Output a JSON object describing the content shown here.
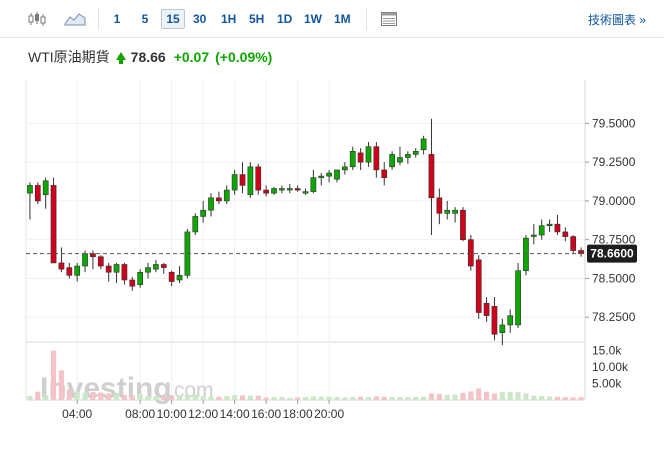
{
  "toolbar": {
    "chart_type_icon": "candlestick-icon",
    "area_icon": "area-chart-icon",
    "timeframes": [
      "1",
      "5",
      "15",
      "30",
      "1H",
      "5H",
      "1D",
      "1W",
      "1M"
    ],
    "active_timeframe": "15",
    "table_icon": "data-table-icon",
    "chart_link": "技術圖表 »"
  },
  "quote": {
    "name": "WTI原油期貨",
    "last": "78.66",
    "change": "+0.07",
    "change_pct": "(+0.09%)"
  },
  "watermark": {
    "brand": "Investing",
    "suffix": ".com"
  },
  "colors": {
    "up": "#0ea600",
    "down": "#d0021b",
    "price_tag": "#1d1d1d",
    "grid": "#f0f0f0"
  },
  "chart_data": {
    "type": "candlestick",
    "price_axis": {
      "ticks": [
        "79.5000",
        "79.2500",
        "79.0000",
        "78.7500",
        "78.5000",
        "78.2500"
      ],
      "ylim": [
        78.09,
        79.78
      ]
    },
    "current_price_label": "78.6600",
    "current_price": 78.66,
    "time_axis": {
      "labels": [
        "04:00",
        "08:00",
        "10:00",
        "12:00",
        "14:00",
        "16:00",
        "18:00",
        "20:00"
      ],
      "label_positions": [
        6,
        14,
        18,
        22,
        26,
        30,
        34,
        38
      ]
    },
    "volume_axis": {
      "ticks": [
        "15.0k",
        "10.00k",
        "5.00k"
      ],
      "max": 17000
    },
    "candles": [
      [
        79.05,
        79.12,
        78.88,
        79.1
      ],
      [
        79.1,
        79.12,
        78.98,
        79.0
      ],
      [
        79.04,
        79.15,
        78.95,
        79.13
      ],
      [
        79.1,
        79.15,
        78.6,
        78.6
      ],
      [
        78.6,
        78.7,
        78.54,
        78.56
      ],
      [
        78.57,
        78.6,
        78.5,
        78.52
      ],
      [
        78.52,
        78.6,
        78.48,
        78.58
      ],
      [
        78.58,
        78.68,
        78.54,
        78.66
      ],
      [
        78.66,
        78.68,
        78.56,
        78.64
      ],
      [
        78.64,
        78.65,
        78.56,
        78.58
      ],
      [
        78.58,
        78.6,
        78.48,
        78.54
      ],
      [
        78.54,
        78.6,
        78.47,
        78.59
      ],
      [
        78.59,
        78.6,
        78.46,
        78.49
      ],
      [
        78.49,
        78.51,
        78.42,
        78.45
      ],
      [
        78.46,
        78.56,
        78.44,
        78.54
      ],
      [
        78.54,
        78.6,
        78.5,
        78.57
      ],
      [
        78.56,
        78.62,
        78.54,
        78.59
      ],
      [
        78.59,
        78.6,
        78.53,
        78.57
      ],
      [
        78.54,
        78.55,
        78.45,
        78.48
      ],
      [
        78.49,
        78.58,
        78.47,
        78.52
      ],
      [
        78.52,
        78.82,
        78.5,
        78.8
      ],
      [
        78.8,
        78.92,
        78.78,
        78.9
      ],
      [
        78.9,
        79.0,
        78.86,
        78.94
      ],
      [
        78.94,
        79.05,
        78.9,
        79.02
      ],
      [
        79.02,
        79.06,
        78.98,
        79.0
      ],
      [
        79.0,
        79.1,
        78.98,
        79.07
      ],
      [
        79.07,
        79.2,
        79.04,
        79.17
      ],
      [
        79.17,
        79.25,
        79.05,
        79.1
      ],
      [
        79.04,
        79.25,
        79.02,
        79.22
      ],
      [
        79.22,
        79.24,
        79.04,
        79.07
      ],
      [
        79.07,
        79.1,
        79.03,
        79.05
      ],
      [
        79.05,
        79.09,
        79.04,
        79.08
      ],
      [
        79.07,
        79.1,
        79.05,
        79.08
      ],
      [
        79.08,
        79.11,
        79.05,
        79.08
      ],
      [
        79.08,
        79.1,
        79.06,
        79.07
      ],
      [
        79.05,
        79.08,
        79.04,
        79.06
      ],
      [
        79.06,
        79.2,
        79.05,
        79.15
      ],
      [
        79.15,
        79.18,
        79.1,
        79.16
      ],
      [
        79.16,
        79.2,
        79.12,
        79.18
      ],
      [
        79.14,
        79.2,
        79.12,
        79.2
      ],
      [
        79.2,
        79.25,
        79.17,
        79.22
      ],
      [
        79.22,
        79.35,
        79.2,
        79.32
      ],
      [
        79.31,
        79.34,
        79.2,
        79.25
      ],
      [
        79.25,
        79.38,
        79.22,
        79.35
      ],
      [
        79.35,
        79.38,
        79.15,
        79.2
      ],
      [
        79.2,
        79.25,
        79.1,
        79.15
      ],
      [
        79.22,
        79.32,
        79.2,
        79.3
      ],
      [
        79.25,
        79.35,
        79.23,
        79.28
      ],
      [
        79.28,
        79.32,
        79.24,
        79.3
      ],
      [
        79.3,
        79.34,
        79.28,
        79.32
      ],
      [
        79.33,
        79.42,
        79.3,
        79.4
      ],
      [
        79.3,
        79.53,
        78.78,
        79.02
      ],
      [
        79.02,
        79.08,
        78.85,
        78.92
      ],
      [
        78.92,
        79.0,
        78.88,
        78.94
      ],
      [
        78.92,
        78.96,
        78.86,
        78.94
      ],
      [
        78.94,
        78.96,
        78.74,
        78.75
      ],
      [
        78.75,
        78.78,
        78.55,
        78.58
      ],
      [
        78.62,
        78.65,
        78.24,
        78.28
      ],
      [
        78.34,
        78.38,
        78.22,
        78.26
      ],
      [
        78.32,
        78.38,
        78.1,
        78.14
      ],
      [
        78.15,
        78.24,
        78.07,
        78.2
      ],
      [
        78.2,
        78.3,
        78.15,
        78.26
      ],
      [
        78.2,
        78.6,
        78.18,
        78.55
      ],
      [
        78.55,
        78.78,
        78.52,
        78.76
      ],
      [
        78.78,
        78.85,
        78.72,
        78.78
      ],
      [
        78.78,
        78.88,
        78.75,
        78.84
      ],
      [
        78.84,
        78.88,
        78.8,
        78.85
      ],
      [
        78.85,
        78.91,
        78.78,
        78.8
      ],
      [
        78.8,
        78.83,
        78.74,
        78.77
      ],
      [
        78.77,
        78.78,
        78.66,
        78.68
      ],
      [
        78.68,
        78.7,
        78.64,
        78.66
      ]
    ],
    "volumes": [
      1200,
      2500,
      1400,
      15000,
      9000,
      3200,
      2600,
      2200,
      2400,
      2300,
      2000,
      2200,
      1500,
      1400,
      1800,
      1300,
      1200,
      1000,
      1400,
      1500,
      1600,
      1700,
      1200,
      1100,
      1000,
      1200,
      1500,
      1400,
      1300,
      1300,
      800,
      900,
      900,
      700,
      800,
      900,
      1100,
      1000,
      1000,
      900,
      800,
      900,
      1000,
      900,
      1100,
      1000,
      900,
      900,
      800,
      900,
      1000,
      2000,
      1800,
      1500,
      1700,
      2200,
      2600,
      3500,
      2500,
      2000,
      2400,
      2500,
      2400,
      2000,
      1300,
      1200,
      1100,
      1000,
      900,
      800,
      900
    ]
  }
}
